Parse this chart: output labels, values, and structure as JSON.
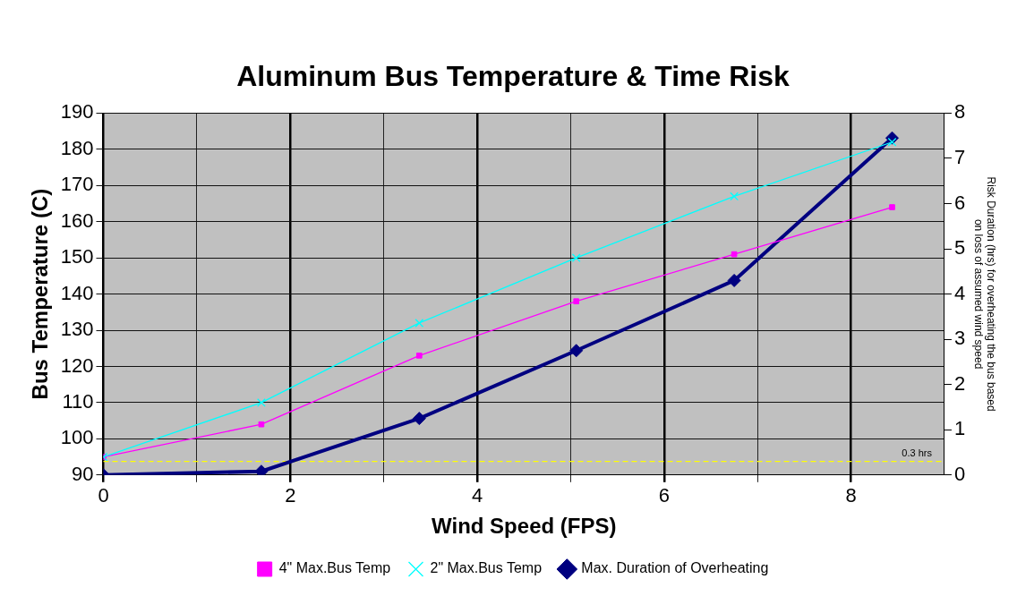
{
  "chart_data": {
    "type": "line",
    "title": "Aluminum Bus Temperature & Time Risk",
    "xlabel": "Wind Speed (FPS)",
    "ylabel": "Bus Temperature (C)",
    "y2label": "Risk Duration (hrs) for overheating the bus based on loss of assumed wind speed",
    "x": [
      0,
      1.69,
      3.38,
      5.06,
      6.75,
      8.44
    ],
    "series": [
      {
        "name": "4\" Max.Bus Temp",
        "color": "#ff00ff",
        "marker": "square",
        "values": [
          95,
          104,
          123,
          138,
          151,
          164
        ]
      },
      {
        "name": "2\" Max.Bus Temp",
        "color": "#00ffff",
        "marker": "cross",
        "values": [
          95,
          110,
          132,
          150,
          167,
          182
        ]
      },
      {
        "name": "Max. Duration of Overheating",
        "color": "#000080",
        "marker": "diamond",
        "axis": "y2",
        "values": [
          0,
          0.08,
          1.25,
          2.75,
          4.3,
          7.45
        ]
      }
    ],
    "xlim": [
      0,
      9
    ],
    "xticks": [
      0,
      {
        "value": 1,
        "label": null
      },
      2,
      {
        "value": 3,
        "label": null
      },
      4,
      {
        "value": 5,
        "label": null
      },
      6,
      {
        "value": 7,
        "label": null
      },
      8
    ],
    "ylim": [
      90,
      190
    ],
    "yticks": [
      90,
      100,
      110,
      120,
      130,
      140,
      150,
      160,
      170,
      180,
      190
    ],
    "y2lim": [
      0,
      8
    ],
    "y2ticks": [
      0,
      1,
      2,
      3,
      4,
      5,
      6,
      7,
      8
    ],
    "ref_lines": [
      {
        "axis": "y2",
        "value": 0.3,
        "label": "0.3 hrs",
        "color": "#ffff00",
        "line_style": "dashed"
      }
    ],
    "grid": true,
    "legend": "bottom"
  }
}
